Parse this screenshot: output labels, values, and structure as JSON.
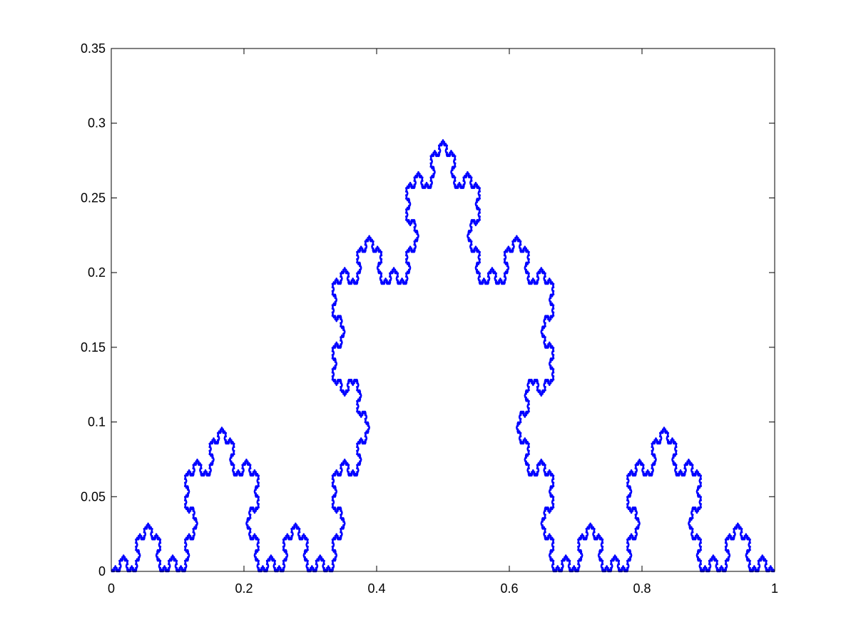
{
  "chart_data": {
    "type": "line",
    "title": "",
    "xlabel": "",
    "ylabel": "",
    "xlim": [
      0,
      1
    ],
    "ylim": [
      0,
      0.35
    ],
    "grid": false,
    "box": true,
    "x_ticks": [
      0,
      0.2,
      0.4,
      0.6,
      0.8,
      1
    ],
    "x_tick_labels": [
      "0",
      "0.2",
      "0.4",
      "0.6",
      "0.8",
      "1"
    ],
    "y_ticks": [
      0,
      0.05,
      0.1,
      0.15,
      0.2,
      0.25,
      0.3,
      0.35
    ],
    "y_tick_labels": [
      "0",
      "0.05",
      "0.1",
      "0.15",
      "0.2",
      "0.25",
      "0.3",
      "0.35"
    ],
    "series": [
      {
        "color": "#0000ff",
        "curve": "Koch curve from (0, 0) to (1, 0)",
        "iterations": 6,
        "peak": {
          "x": 0.5,
          "y": 0.2887
        }
      }
    ]
  }
}
